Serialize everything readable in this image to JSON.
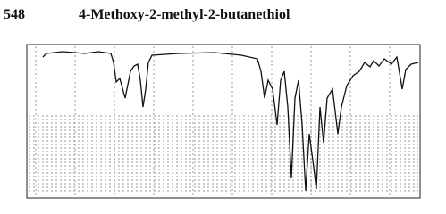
{
  "header": {
    "number": "548",
    "title": "4-Methoxy-2-methyl-2-butanethiol"
  }
}
